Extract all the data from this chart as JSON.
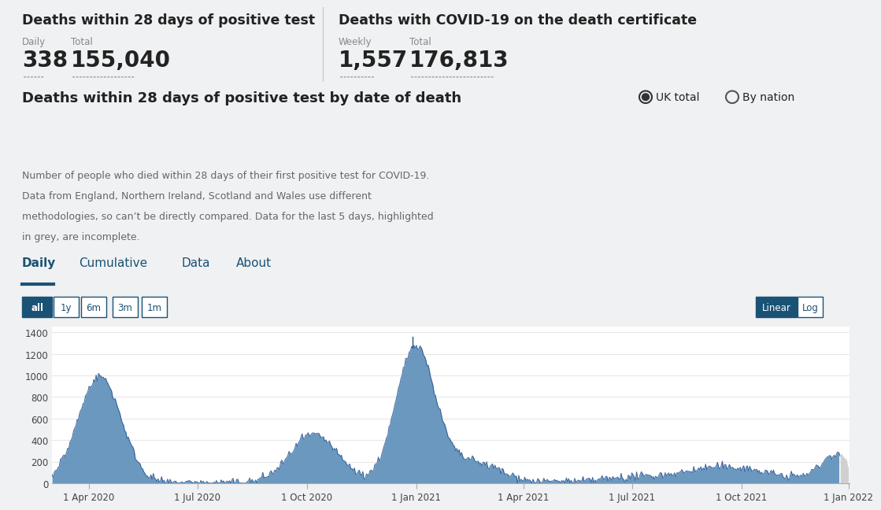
{
  "top_bg": "#ffffff",
  "main_bg": "#f0f1f2",
  "header1_title": "Deaths within 28 days of positive test",
  "header1_daily_label": "Daily",
  "header1_total_label": "Total",
  "header1_daily_val": "338",
  "header1_total_val": "155,040",
  "header2_title": "Deaths with COVID-19 on the death certificate",
  "header2_weekly_label": "Weekly",
  "header2_total_label": "Total",
  "header2_weekly_val": "1,557",
  "header2_total_val": "176,813",
  "chart_title": "Deaths within 28 days of positive test by date of death",
  "radio1": "UK total",
  "radio2": "By nation",
  "desc_line1": "Number of people who died within 28 days of their first positive test for COVID-19.",
  "desc_line2": "Data from England, Northern Ireland, Scotland and Wales use different",
  "desc_line3": "methodologies, so can’t be directly compared. Data for the last 5 days, highlighted",
  "desc_line4": "in grey, are incomplete.",
  "tab_daily": "Daily",
  "tab_cumulative": "Cumulative",
  "tab_data": "Data",
  "tab_about": "About",
  "btn_all": "all",
  "btn_1y": "1y",
  "btn_6m": "6m",
  "btn_3m": "3m",
  "btn_1m": "1m",
  "btn_linear": "Linear",
  "btn_log": "Log",
  "yticks": [
    0,
    200,
    400,
    600,
    800,
    1000,
    1200,
    1400
  ],
  "xtick_labels": [
    "1 Apr 2020",
    "1 Jul 2020",
    "1 Oct 2020",
    "1 Jan 2021",
    "1 Apr 2021",
    "1 Jul 2021",
    "1 Oct 2021",
    "1 Jan 2022"
  ],
  "fill_color": "#5b8db8",
  "line_color": "#1f4e8c",
  "grey_fill": "#c8c8c8",
  "chart_bg": "#ffffff",
  "grid_color": "#e8e8e8",
  "blue_tab": "#1a5276",
  "blue_btn": "#1a5276",
  "separator_color": "#cccccc",
  "label_color": "#888888",
  "text_color": "#222222",
  "desc_color": "#666666"
}
